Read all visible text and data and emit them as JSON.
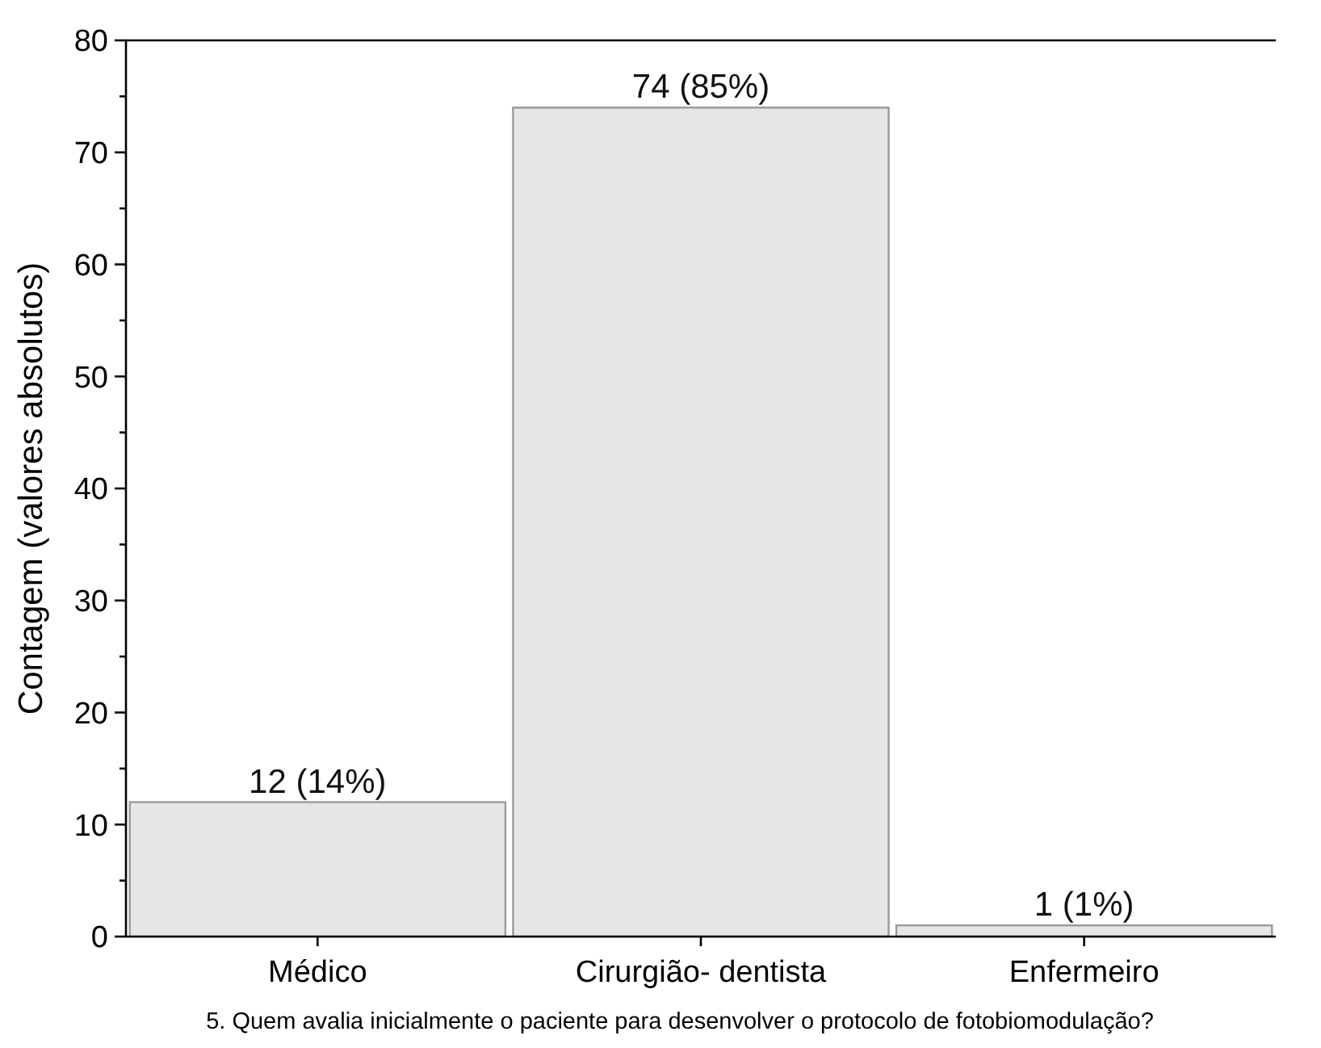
{
  "chart_data": {
    "type": "bar",
    "ylabel": "Contagem (valores absolutos)",
    "categories": [
      "Médico",
      "Cirurgião- dentista",
      "Enfermeiro"
    ],
    "values": [
      12,
      74,
      1
    ],
    "value_labels": [
      "12 (14%)",
      "74 (85%)",
      "1 (1%)"
    ],
    "color": "#e6e6e6",
    "ylim": [
      0,
      80
    ],
    "yticks": [
      0,
      {
        "value": 5,
        "label": null
      },
      10,
      {
        "value": 15,
        "label": null
      },
      20,
      {
        "value": 25,
        "label": null
      },
      30,
      {
        "value": 35,
        "label": null
      },
      40,
      {
        "value": 45,
        "label": null
      },
      50,
      {
        "value": 55,
        "label": null
      },
      60,
      {
        "value": 65,
        "label": null
      },
      70,
      {
        "value": 75,
        "label": null
      },
      80
    ],
    "grid": false,
    "annotations": [
      "5. Quem avalia inicialmente o paciente para desenvolver o protocolo de fotobiomodulação?"
    ]
  }
}
